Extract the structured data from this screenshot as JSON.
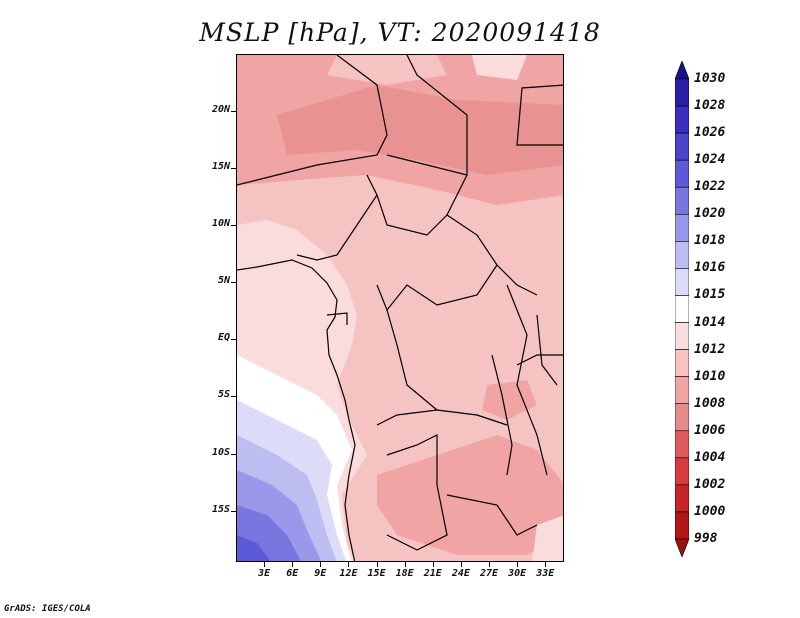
{
  "title": "MSLP [hPa], VT: 2020091418",
  "credit": "GrADS: IGES/COLA",
  "map": {
    "lat_labels": [
      "20N",
      "15N",
      "10N",
      "5N",
      "EQ",
      "5S",
      "10S",
      "15S"
    ],
    "lon_labels": [
      "3E",
      "6E",
      "9E",
      "12E",
      "15E",
      "18E",
      "21E",
      "24E",
      "27E",
      "30E",
      "33E"
    ],
    "lat_values": [
      20,
      15,
      10,
      5,
      0,
      -5,
      -10,
      -15
    ],
    "lon_values": [
      3,
      6,
      9,
      12,
      15,
      18,
      21,
      24,
      27,
      30,
      33
    ],
    "lon_range": [
      0,
      35
    ],
    "lat_range": [
      -19.5,
      25
    ]
  },
  "colorbar": {
    "labels": [
      "1030",
      "1028",
      "1026",
      "1024",
      "1022",
      "1020",
      "1018",
      "1016",
      "1015",
      "1014",
      "1012",
      "1010",
      "1008",
      "1006",
      "1004",
      "1002",
      "1000",
      "998"
    ],
    "colors": [
      "#1a0f8f",
      "#2a1fa8",
      "#3a2fc0",
      "#4b44cc",
      "#5c5ad6",
      "#7a76e0",
      "#9a98ea",
      "#bdbdf2",
      "#dcdcf8",
      "#ffffff",
      "#fbdcdc",
      "#f6c3c3",
      "#f0a4a4",
      "#e68a8a",
      "#de5c5c",
      "#d63c3c",
      "#c82626",
      "#b01818",
      "#9a0f0f"
    ]
  }
}
